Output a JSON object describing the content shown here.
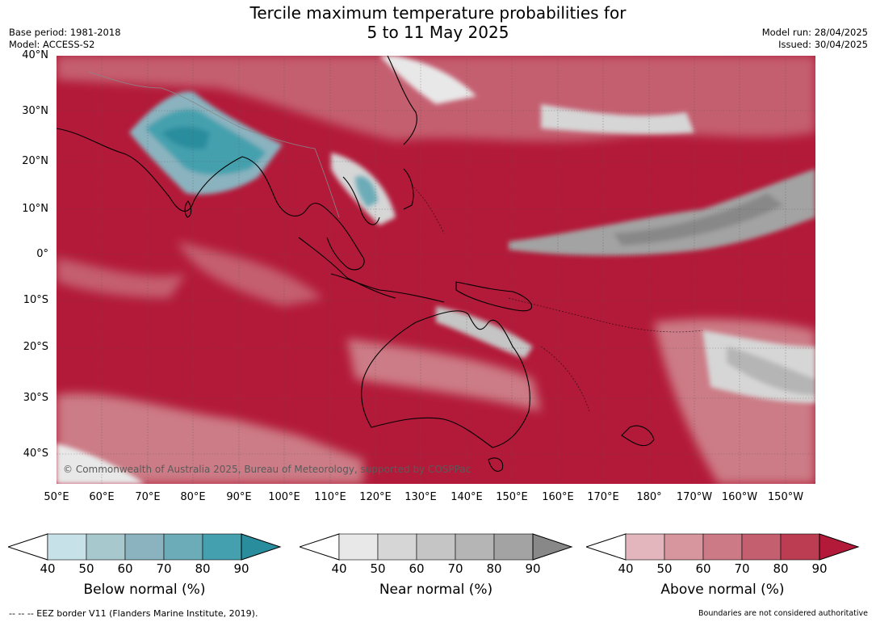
{
  "title_line1": "Tercile maximum temperature probabilities for",
  "title_line2": "5 to 11 May 2025",
  "base_period": "Base period: 1981-2018",
  "model": "Model: ACCESS-S2",
  "model_run": "Model run: 28/04/2025",
  "issued": "Issued: 30/04/2025",
  "copyright": "© Commonwealth of Australia 2025, Bureau of Meteorology, supported by COSPPac",
  "lat_labels": [
    "40°N",
    "30°N",
    "20°N",
    "10°N",
    "0°",
    "10°S",
    "20°S",
    "30°S",
    "40°S"
  ],
  "lon_labels": [
    "50°E",
    "60°E",
    "70°E",
    "80°E",
    "90°E",
    "100°E",
    "110°E",
    "120°E",
    "130°E",
    "140°E",
    "150°E",
    "160°E",
    "170°E",
    "180°",
    "170°W",
    "160°W",
    "150°W"
  ],
  "colorbars": [
    {
      "label": "Below normal (%)",
      "ticks": [
        "40",
        "50",
        "60",
        "70",
        "80",
        "90"
      ],
      "colors": [
        "#c6e1e7",
        "#a7c8cd",
        "#8ab3bf",
        "#6cacb8",
        "#44a0ae",
        "#2a8d9d"
      ]
    },
    {
      "label": "Near normal (%)",
      "ticks": [
        "40",
        "50",
        "60",
        "70",
        "80",
        "90"
      ],
      "colors": [
        "#e8e8e8",
        "#d6d6d6",
        "#c5c5c5",
        "#b5b5b5",
        "#a3a3a3",
        "#888888"
      ]
    },
    {
      "label": "Above normal (%)",
      "ticks": [
        "40",
        "50",
        "60",
        "70",
        "80",
        "90"
      ],
      "colors": [
        "#e3b6bd",
        "#d7959e",
        "#cc7b86",
        "#c45f6f",
        "#bc3c51",
        "#b31a39"
      ]
    }
  ],
  "footer_left": "--  --  -- EEZ border V11 (Flanders Marine Institute, 2019).",
  "footer_right": "Boundaries are not considered authoritative"
}
